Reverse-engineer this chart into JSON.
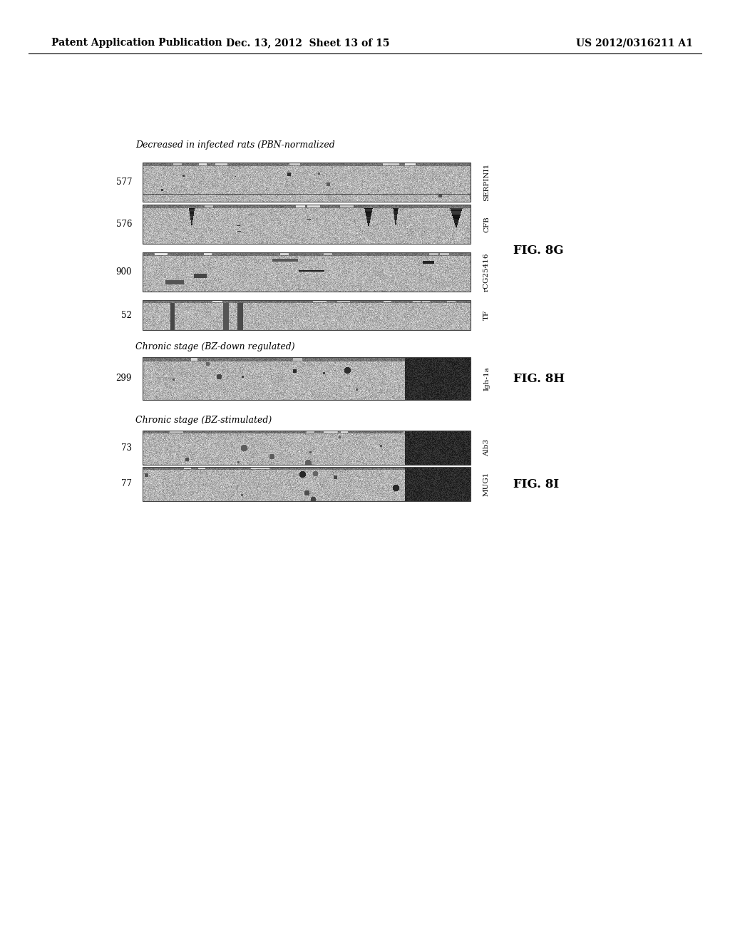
{
  "header_left": "Patent Application Publication",
  "header_mid": "Dec. 13, 2012  Sheet 13 of 15",
  "header_right": "US 2012/0316211 A1",
  "section_G_title": "Decreased in infected rats (PBN-normalized",
  "section_H_title": "Chronic stage (BZ-down regulated)",
  "section_I_title": "Chronic stage (BZ-stimulated)",
  "fig_labels": [
    "FIG. 8G",
    "FIG. 8H",
    "FIG. 8I"
  ],
  "rows_G": [
    {
      "num": "577",
      "gene": "SERPINI1"
    },
    {
      "num": "576",
      "gene": "CFB"
    },
    {
      "num": "900",
      "gene": "rCG25416"
    },
    {
      "num": "52",
      "gene": "TF"
    }
  ],
  "rows_H": [
    {
      "num": "299",
      "gene": "Igh-1a"
    }
  ],
  "rows_I": [
    {
      "num": "73",
      "gene": "Alb3"
    },
    {
      "num": "77",
      "gene": "MUG1"
    }
  ],
  "bg_color": "#f0eeeb",
  "page_bg": "#ffffff"
}
